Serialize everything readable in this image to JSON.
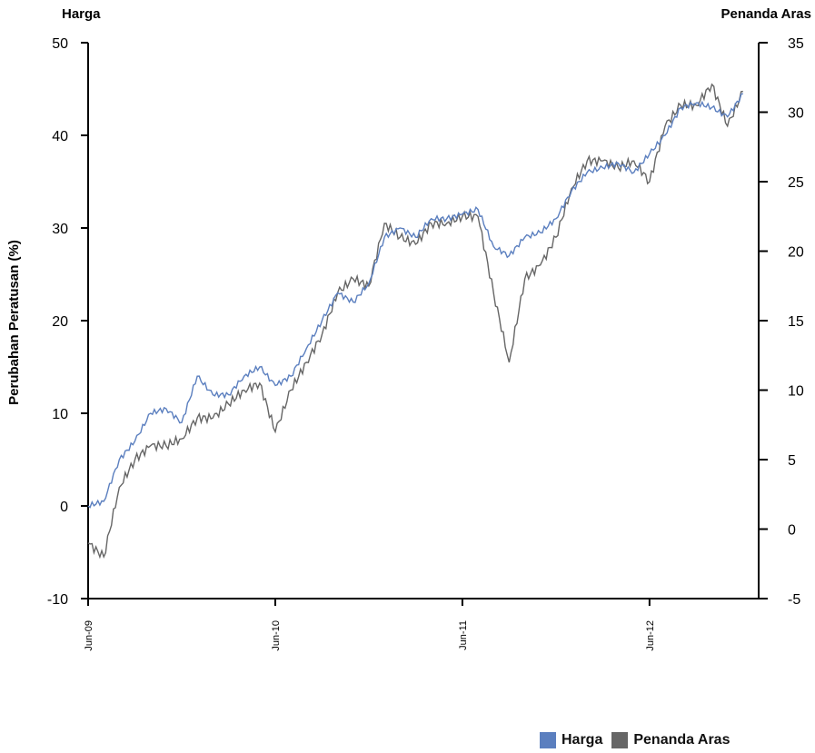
{
  "chart_data": {
    "type": "line",
    "left_axis_label": "Harga",
    "right_axis_label": "Penanda Aras",
    "ylabel": "Perubahan Peratusan (%)",
    "x_ticks": [
      "Jun-09",
      "Jun-10",
      "Jun-11",
      "Jun-12"
    ],
    "x_range": [
      "Jun-09",
      "Jan-13"
    ],
    "y_left_ticks": [
      "50",
      "40",
      "30",
      "20",
      "10",
      "0",
      "-10"
    ],
    "y_left_range": [
      -10,
      50
    ],
    "y_right_ticks": [
      "35",
      "30",
      "25",
      "20",
      "15",
      "10",
      "5",
      "0",
      "-5"
    ],
    "y_right_range": [
      -5,
      35
    ],
    "grid": false,
    "legend_position": "bottom-right",
    "series": [
      {
        "name": "Harga",
        "axis": "left",
        "color": "#5b7fbf",
        "x": [
          "Jun-09",
          "Jul-09",
          "Aug-09",
          "Sep-09",
          "Oct-09",
          "Nov-09",
          "Dec-09",
          "Jan-10",
          "Feb-10",
          "Mar-10",
          "Apr-10",
          "May-10",
          "Jun-10",
          "Jul-10",
          "Aug-10",
          "Sep-10",
          "Oct-10",
          "Nov-10",
          "Dec-10",
          "Jan-11",
          "Feb-11",
          "Mar-11",
          "Apr-11",
          "May-11",
          "Jun-11",
          "Jul-11",
          "Aug-11",
          "Sep-11",
          "Oct-11",
          "Nov-11",
          "Dec-11",
          "Jan-12",
          "Feb-12",
          "Mar-12",
          "Apr-12",
          "May-12",
          "Jun-12",
          "Jul-12",
          "Aug-12",
          "Sep-12",
          "Oct-12",
          "Nov-12",
          "Dec-12"
        ],
        "values": [
          0,
          0.5,
          5,
          7,
          10,
          10.5,
          9,
          14,
          12,
          12,
          14,
          15,
          13,
          14,
          17,
          20,
          23,
          22,
          24,
          29,
          30,
          29,
          31,
          31,
          31.5,
          32,
          28,
          27,
          29,
          29.5,
          31,
          34,
          36,
          36.5,
          37,
          36,
          38,
          40,
          43,
          43.5,
          43,
          42,
          44.5
        ]
      },
      {
        "name": "Penanda Aras",
        "axis": "right",
        "color": "#666666",
        "x": [
          "Jun-09",
          "Jul-09",
          "Aug-09",
          "Sep-09",
          "Oct-09",
          "Nov-09",
          "Dec-09",
          "Jan-10",
          "Feb-10",
          "Mar-10",
          "Apr-10",
          "May-10",
          "Jun-10",
          "Jul-10",
          "Aug-10",
          "Sep-10",
          "Oct-10",
          "Nov-10",
          "Dec-10",
          "Jan-11",
          "Feb-11",
          "Mar-11",
          "Apr-11",
          "May-11",
          "Jun-11",
          "Jul-11",
          "Aug-11",
          "Sep-11",
          "Oct-11",
          "Nov-11",
          "Dec-11",
          "Jan-12",
          "Feb-12",
          "Mar-12",
          "Apr-12",
          "May-12",
          "Jun-12",
          "Jul-12",
          "Aug-12",
          "Sep-12",
          "Oct-12",
          "Nov-12",
          "Dec-12"
        ],
        "values": [
          -1,
          -2,
          3,
          5,
          6,
          6,
          6.5,
          8,
          8,
          9,
          10,
          10.5,
          7,
          10,
          12,
          14,
          17,
          18,
          17.5,
          22,
          21,
          20.5,
          22,
          22,
          22.5,
          22.5,
          17,
          12,
          18,
          19,
          21,
          24.5,
          26.5,
          26.5,
          26,
          26.5,
          25,
          29,
          30.5,
          30.5,
          32,
          29,
          31.5
        ]
      }
    ]
  },
  "legend": {
    "items": [
      {
        "label": "Harga",
        "color": "#5b7fbf"
      },
      {
        "label": "Penanda Aras",
        "color": "#666666"
      }
    ]
  }
}
